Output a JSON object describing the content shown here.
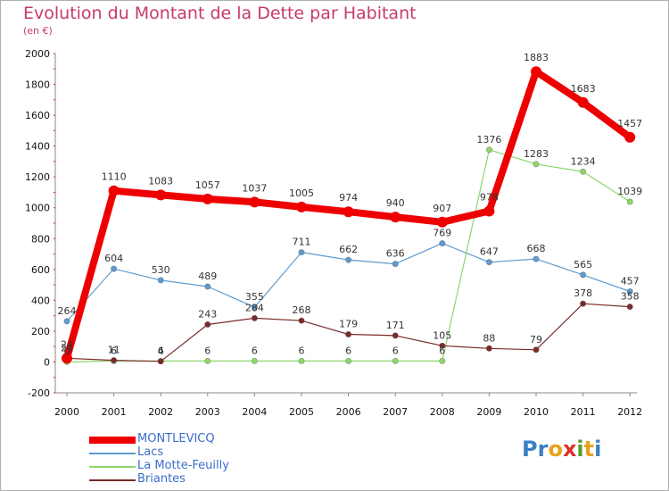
{
  "title": "Evolution du Montant de la Dette par Habitant",
  "subtitle": "(en €)",
  "logo": {
    "letters": [
      "P",
      "r",
      "o",
      "x",
      "i",
      "t",
      "i"
    ],
    "colors": [
      "#3b7fc4",
      "#3b7fc4",
      "#e8a21a",
      "#d9332c",
      "#5a9e2e",
      "#e8a21a",
      "#3b7fc4"
    ]
  },
  "chart_data": {
    "type": "line",
    "x": [
      "2000",
      "2001",
      "2002",
      "2003",
      "2004",
      "2005",
      "2006",
      "2007",
      "2008",
      "2009",
      "2010",
      "2011",
      "2012"
    ],
    "ylim": [
      -200,
      2000
    ],
    "yticks": [
      -200,
      0,
      200,
      400,
      600,
      800,
      1000,
      1200,
      1400,
      1600,
      1800,
      2000
    ],
    "grid": false,
    "legend_position": "bottom-left",
    "series": [
      {
        "name": "MONTLEVICQ",
        "color": "#ee0000",
        "values": [
          24,
          1110,
          1083,
          1057,
          1037,
          1005,
          974,
          940,
          907,
          978,
          1883,
          1683,
          1457
        ],
        "labels": [
          "24",
          "1110",
          "1083",
          "1057",
          "1037",
          "1005",
          "974",
          "940",
          "907",
          "978",
          "1883",
          "1683",
          "1457"
        ]
      },
      {
        "name": "Lacs",
        "color": "#5d9bd0",
        "values": [
          264,
          604,
          530,
          489,
          355,
          711,
          662,
          636,
          769,
          647,
          668,
          565,
          457
        ],
        "labels": [
          "264",
          "604",
          "530",
          "489",
          "355",
          "711",
          "662",
          "636",
          "769",
          "647",
          "668",
          "565",
          "457"
        ]
      },
      {
        "name": "La Motte-Feuilly",
        "color": "#8ed66a",
        "values": [
          0,
          6,
          6,
          6,
          6,
          6,
          6,
          6,
          6,
          1376,
          1283,
          1234,
          1039
        ],
        "labels": [
          "0",
          "6",
          "6",
          "6",
          "6",
          "6",
          "6",
          "6",
          "6",
          "1376",
          "1283",
          "1234",
          "1039"
        ]
      },
      {
        "name": "Briantes",
        "color": "#7a2a2a",
        "values": [
          24,
          11,
          4,
          243,
          284,
          268,
          179,
          171,
          105,
          88,
          79,
          378,
          358
        ],
        "labels": [
          "24",
          "11",
          "4",
          "243",
          "284",
          "268",
          "179",
          "171",
          "105",
          "88",
          "79",
          "378",
          "358"
        ]
      }
    ]
  }
}
